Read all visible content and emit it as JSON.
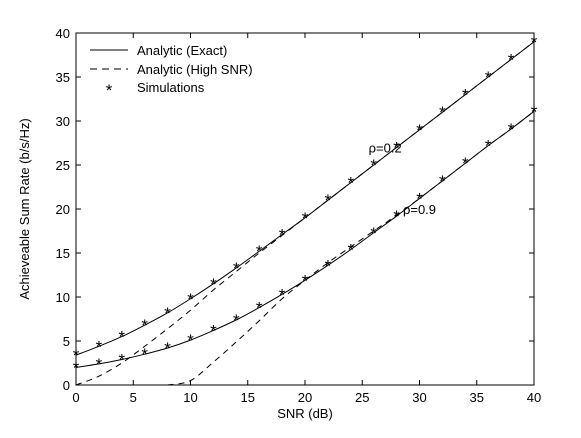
{
  "chart_data": {
    "type": "line",
    "title": "",
    "xlabel": "SNR (dB)",
    "ylabel": "Achieveable Sum Rate (b/s/Hz)",
    "xlim": [
      0,
      40
    ],
    "ylim": [
      0,
      40
    ],
    "xticks": [
      0,
      5,
      10,
      15,
      20,
      25,
      30,
      35,
      40
    ],
    "yticks": [
      0,
      5,
      10,
      15,
      20,
      25,
      30,
      35,
      40
    ],
    "grid": false,
    "legend_position": "top-left",
    "legend": [
      {
        "label": "Analytic (Exact)",
        "style": "solid"
      },
      {
        "label": "Analytic (High SNR)",
        "style": "dashed"
      },
      {
        "label": "Simulations",
        "style": "asterisk"
      }
    ],
    "annotations": [
      {
        "text": "ρ=0.2",
        "x": 27,
        "y": 27
      },
      {
        "text": "ρ=0.9",
        "x": 30,
        "y": 20
      }
    ],
    "x": [
      0,
      2,
      4,
      6,
      8,
      10,
      12,
      14,
      16,
      18,
      20,
      22,
      24,
      26,
      28,
      30,
      32,
      34,
      36,
      38,
      40
    ],
    "series": [
      {
        "case": "ρ=0.2",
        "kind": "Analytic (Exact)",
        "values": [
          3.4,
          4.4,
          5.5,
          6.8,
          8.2,
          9.8,
          11.5,
          13.3,
          15.2,
          17.1,
          19.0,
          21.0,
          23.0,
          25.0,
          27.0,
          29.0,
          31.0,
          33.0,
          35.0,
          37.0,
          39.0
        ]
      },
      {
        "case": "ρ=0.2",
        "kind": "Analytic (High SNR)",
        "values": [
          0.0,
          1.0,
          2.5,
          4.4,
          6.4,
          8.5,
          10.8,
          12.9,
          15.0,
          17.0,
          19.0,
          21.0,
          23.0,
          25.0,
          27.0,
          29.0,
          31.0,
          33.0,
          35.0,
          37.0,
          39.0
        ]
      },
      {
        "case": "ρ=0.2",
        "kind": "Simulations",
        "values": [
          3.4,
          4.4,
          5.5,
          6.8,
          8.2,
          9.8,
          11.5,
          13.3,
          15.2,
          17.1,
          19.0,
          21.0,
          23.0,
          25.0,
          27.0,
          29.0,
          31.0,
          33.0,
          35.0,
          37.0,
          39.0
        ]
      },
      {
        "case": "ρ=0.9",
        "kind": "Analytic (Exact)",
        "values": [
          2.0,
          2.4,
          2.9,
          3.5,
          4.2,
          5.1,
          6.2,
          7.4,
          8.8,
          10.3,
          11.9,
          13.6,
          15.4,
          17.3,
          19.2,
          21.2,
          23.2,
          25.2,
          27.2,
          29.1,
          31.1
        ]
      },
      {
        "case": "ρ=0.9",
        "kind": "Analytic (High SNR)",
        "values": [
          null,
          null,
          null,
          null,
          0.0,
          0.5,
          2.6,
          4.9,
          7.3,
          9.8,
          11.9,
          13.9,
          15.7,
          17.5,
          19.3,
          21.2,
          23.2,
          25.2,
          27.2,
          29.1,
          31.1
        ]
      },
      {
        "case": "ρ=0.9",
        "kind": "Simulations",
        "values": [
          2.0,
          2.4,
          2.9,
          3.5,
          4.2,
          5.1,
          6.2,
          7.4,
          8.8,
          10.3,
          11.9,
          13.6,
          15.4,
          17.3,
          19.2,
          21.2,
          23.2,
          25.2,
          27.2,
          29.1,
          31.1
        ]
      }
    ]
  }
}
